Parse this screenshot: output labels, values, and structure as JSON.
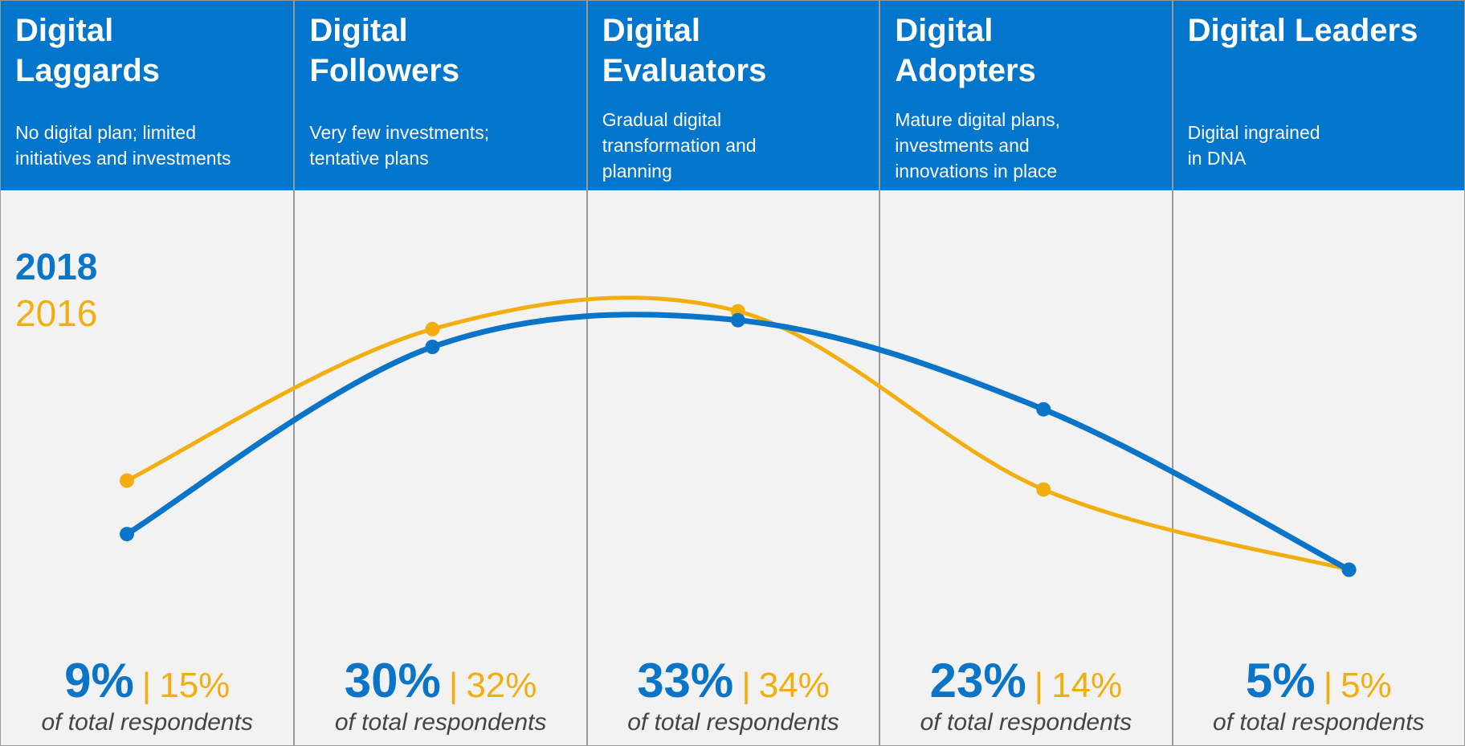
{
  "chart_data": {
    "type": "line",
    "categories": [
      "Digital\nLaggards",
      "Digital\nFollowers",
      "Digital\nEvaluators",
      "Digital\nAdopters",
      "Digital Leaders"
    ],
    "descriptions": [
      "No digital plan; limited\ninitiatives and investments",
      "Very few investments;\ntentative plans",
      "Gradual digital\ntransformation and\nplanning",
      "Mature digital plans,\ninvestments and\ninnovations in place",
      "Digital ingrained\nin DNA"
    ],
    "value_note": "of total respondents",
    "separator": "|",
    "series": [
      {
        "name": "2018",
        "color": "#0a74c9",
        "values": [
          9,
          30,
          33,
          23,
          5
        ],
        "value_labels": [
          "9%",
          "30%",
          "33%",
          "23%",
          "5%"
        ]
      },
      {
        "name": "2016",
        "color": "#f2ae0f",
        "values": [
          15,
          32,
          34,
          14,
          5
        ],
        "value_labels": [
          "15%",
          "32%",
          "34%",
          "14%",
          "5%"
        ]
      }
    ],
    "ylim": [
      0,
      40
    ]
  }
}
